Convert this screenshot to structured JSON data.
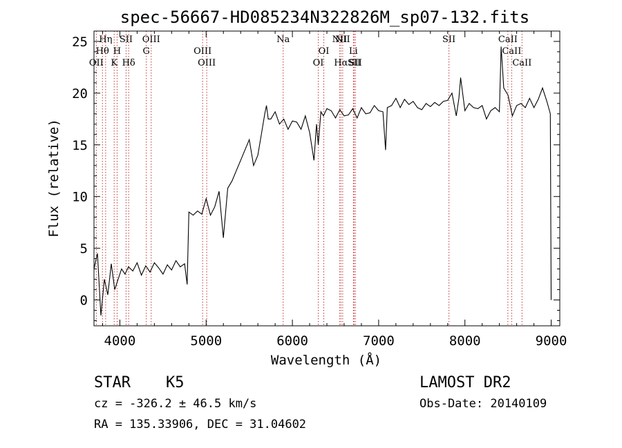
{
  "chart_data": {
    "type": "line",
    "title": "spec-56667-HD085234N322826M_sp07-132.fits",
    "xlabel": "Wavelength (Å)",
    "ylabel": "Flux (relative)",
    "xlim": [
      3700,
      9100
    ],
    "ylim": [
      -2.5,
      26
    ],
    "xticks": [
      4000,
      5000,
      6000,
      7000,
      8000,
      9000
    ],
    "yticks": [
      0,
      5,
      10,
      15,
      20,
      25
    ],
    "grid": false,
    "series": [
      {
        "color": "#000000",
        "x": [
          3700,
          3740,
          3780,
          3820,
          3860,
          3900,
          3940,
          3980,
          4020,
          4060,
          4100,
          4150,
          4200,
          4250,
          4300,
          4350,
          4400,
          4450,
          4500,
          4550,
          4600,
          4650,
          4700,
          4750,
          4780,
          4800,
          4850,
          4900,
          4950,
          5000,
          5050,
          5100,
          5150,
          5200,
          5250,
          5300,
          5350,
          5400,
          5450,
          5500,
          5550,
          5600,
          5650,
          5680,
          5700,
          5720,
          5750,
          5800,
          5850,
          5900,
          5950,
          6000,
          6050,
          6100,
          6150,
          6200,
          6250,
          6280,
          6300,
          6330,
          6360,
          6400,
          6450,
          6500,
          6550,
          6600,
          6650,
          6700,
          6750,
          6800,
          6850,
          6900,
          6950,
          7000,
          7050,
          7080,
          7100,
          7150,
          7200,
          7250,
          7300,
          7350,
          7400,
          7450,
          7500,
          7550,
          7600,
          7650,
          7700,
          7750,
          7800,
          7850,
          7900,
          7930,
          7950,
          8000,
          8050,
          8100,
          8150,
          8200,
          8250,
          8300,
          8350,
          8400,
          8420,
          8450,
          8500,
          8550,
          8600,
          8650,
          8700,
          8750,
          8800,
          8850,
          8900,
          8950,
          8990,
          9000
        ],
        "y": [
          3,
          4.5,
          -1.5,
          2,
          0.5,
          3.5,
          1,
          2,
          3,
          2.5,
          3.2,
          2.8,
          3.6,
          2.4,
          3.3,
          2.7,
          3.6,
          3.1,
          2.5,
          3.4,
          2.9,
          3.8,
          3.2,
          3.5,
          1.5,
          8.5,
          8.2,
          8.6,
          8.3,
          9.8,
          8.2,
          9,
          10.5,
          6,
          10.8,
          11.5,
          12.5,
          13.5,
          14.5,
          15.5,
          13,
          14,
          16.5,
          18,
          18.8,
          17.5,
          17.5,
          18.2,
          17,
          17.5,
          16.5,
          17.3,
          17.2,
          16.5,
          17.8,
          16.2,
          13.5,
          17,
          15,
          18.2,
          17.8,
          18.5,
          18.3,
          17.6,
          18.4,
          17.8,
          17.9,
          18.5,
          17.6,
          18.6,
          18,
          18.1,
          18.8,
          18.3,
          18.2,
          14.5,
          18.6,
          18.8,
          19.5,
          18.6,
          19.4,
          18.9,
          19.2,
          18.6,
          18.4,
          19,
          18.7,
          19.1,
          18.8,
          19.2,
          19.3,
          20,
          17.8,
          19.5,
          21.5,
          18.3,
          19,
          18.6,
          18.5,
          18.8,
          17.5,
          18.3,
          18.6,
          18.2,
          24.5,
          20.5,
          19.8,
          17.8,
          18.8,
          19,
          18.6,
          19.5,
          18.6,
          19.4,
          20.5,
          19.2,
          18,
          0
        ]
      }
    ],
    "lines": [
      {
        "x": 3727,
        "name": "OII",
        "row": 2
      },
      {
        "x": 3798,
        "name": "Hθ",
        "row": 1
      },
      {
        "x": 3835,
        "name": "Hη",
        "row": 0
      },
      {
        "x": 3934,
        "name": "K",
        "row": 2
      },
      {
        "x": 3968,
        "name": "H",
        "row": 1
      },
      {
        "x": 4072,
        "name": "SII",
        "row": 0
      },
      {
        "x": 4102,
        "name": "Hδ",
        "row": 2
      },
      {
        "x": 4306,
        "name": "G",
        "row": 1
      },
      {
        "x": 4363,
        "name": "OIII",
        "row": 0
      },
      {
        "x": 4959,
        "name": "OIII",
        "row": 1
      },
      {
        "x": 5007,
        "name": "OIII",
        "row": 2
      },
      {
        "x": 5893,
        "name": "Na",
        "row": 0
      },
      {
        "x": 6300,
        "name": "OI",
        "row": 2
      },
      {
        "x": 6364,
        "name": "OI",
        "row": 1
      },
      {
        "x": 6548,
        "name": "NII",
        "row": 0
      },
      {
        "x": 6563,
        "name": "Hα",
        "row": 2
      },
      {
        "x": 6583,
        "name": "NII",
        "row": 0
      },
      {
        "x": 6707,
        "name": "Li",
        "row": 1
      },
      {
        "x": 6716,
        "name": "SII",
        "row": 2
      },
      {
        "x": 6731,
        "name": "SII",
        "row": 2
      },
      {
        "x": 7815,
        "name": "SII",
        "row": 0
      },
      {
        "x": 8498,
        "name": "CaII",
        "row": 0
      },
      {
        "x": 8542,
        "name": "CaII",
        "row": 1
      },
      {
        "x": 8662,
        "name": "CaII",
        "row": 2
      }
    ]
  },
  "info": {
    "object_class": "STAR",
    "subclass": "K5",
    "survey": "LAMOST DR2",
    "cz": "cz = -326.2 ± 46.5 km/s",
    "obs_date": "Obs-Date: 20140109",
    "coords": "RA = 135.33906, DEC =  31.04602"
  }
}
